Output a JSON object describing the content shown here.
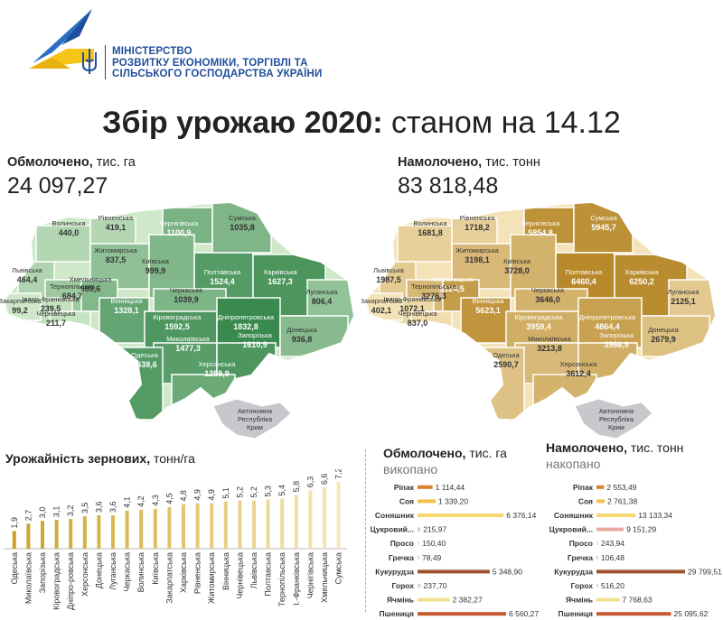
{
  "header": {
    "ministry_lines": [
      "МІНІСТЕРСТВО",
      "РОЗВИТКУ ЕКОНОМІКИ, ТОРГІВЛІ ТА",
      "СІЛЬСЬКОГО ГОСПОДАРСТВА УКРАЇНИ"
    ],
    "logo_icon": "ministry-logo-icon",
    "emblem_icon": "trident-emblem-icon"
  },
  "title": {
    "bold": "Збір урожаю 2020:",
    "rest": "станом на 14.12"
  },
  "threshed": {
    "label_bold": "Обмолочено,",
    "label_unit": "тис. га",
    "value": "24 097,27"
  },
  "harvested": {
    "label_bold": "Намолочено,",
    "label_unit": "тис. тонн",
    "value": "83 818,48"
  },
  "colors": {
    "green_dark": "#3a8a4f",
    "green_light": "#cfe8c9",
    "gold_dark": "#b8892b",
    "gold_light": "#f4e3b8",
    "crimea": "#c8c8cc"
  },
  "maps": {
    "crimea_label": [
      "Автономна",
      "Республіка",
      "Крим"
    ],
    "regions": [
      {
        "name": "Волинська",
        "area": "440,0",
        "yield": "1681,8"
      },
      {
        "name": "Рівненська",
        "area": "419,1",
        "yield": "1718,2"
      },
      {
        "name": "Чернігівська",
        "area": "1100,9",
        "yield": "5854,8"
      },
      {
        "name": "Сумська",
        "area": "1035,8",
        "yield": "5945,7"
      },
      {
        "name": "Житомирська",
        "area": "837,5",
        "yield": "3198,1"
      },
      {
        "name": "Київська",
        "area": "999,9",
        "yield": "3728,0"
      },
      {
        "name": "Львівська",
        "area": "464,4",
        "yield": "1987,5"
      },
      {
        "name": "Хмельницька",
        "area": "989,6",
        "yield": "5124,5"
      },
      {
        "name": "Тернопільська",
        "area": "684,7",
        "yield": "3276,3"
      },
      {
        "name": "Полтавська",
        "area": "1524,4",
        "yield": "6460,4"
      },
      {
        "name": "Харківська",
        "area": "1627,3",
        "yield": "6250,2"
      },
      {
        "name": "Луганська",
        "area": "806,4",
        "yield": "2125,1"
      },
      {
        "name": "Черкаська",
        "area": "1039,9",
        "yield": "3646,0"
      },
      {
        "name": "Івано-Франківська",
        "area": "239,5",
        "yield": "1072,1"
      },
      {
        "name": "Вінницька",
        "area": "1328,1",
        "yield": "5623,1"
      },
      {
        "name": "Закарпатська",
        "area": "99,2",
        "yield": "402,1"
      },
      {
        "name": "Чернівецька",
        "area": "211,7",
        "yield": "837,0"
      },
      {
        "name": "Кіровоградська",
        "area": "1592,5",
        "yield": "3959,4"
      },
      {
        "name": "Дніпропетровська",
        "area": "1832,8",
        "yield": "4864,4"
      },
      {
        "name": "Донецька",
        "area": "936,8",
        "yield": "2679,9"
      },
      {
        "name": "Миколаївська",
        "area": "1477,3",
        "yield": "3213,8"
      },
      {
        "name": "Запорізька",
        "area": "1610,9",
        "yield": "3966,9"
      },
      {
        "name": "Одеська",
        "area": "1538,6",
        "yield": "2590,7"
      },
      {
        "name": "Херсонська",
        "area": "1259,9",
        "yield": "3612,4"
      }
    ]
  },
  "yield_section": {
    "title_bold": "Урожайність зернових,",
    "title_unit": "тонн/га"
  },
  "threshed_section": {
    "title_bold": "Обмолочено,",
    "title_unit": "тис. га",
    "subtitle": "викопано"
  },
  "harvested_section": {
    "title_bold": "Намолочено,",
    "title_unit": "тис. тонн",
    "subtitle": "накопано"
  },
  "chart_data": [
    {
      "type": "bar",
      "title": "Урожайність зернових, тонн/га",
      "categories": [
        "Одеська",
        "Миколаївська",
        "Запорізька",
        "Кіровоградська",
        "Дніпро-ровська",
        "Херсонська",
        "Донецька",
        "Луганська",
        "Черкаська",
        "Волинська",
        "Київська",
        "Закарпатська",
        "Харківська",
        "Рівненська",
        "Житомирська",
        "Вінницька",
        "Чернівецька",
        "Львівська",
        "Полтавська",
        "Тернопільська",
        "І.-Франківська",
        "Чернігівська",
        "Хмельницька",
        "Сумська"
      ],
      "value_labels": [
        "1,9",
        "2,7",
        "3,0",
        "3,1",
        "3,2",
        "3,5",
        "3,6",
        "3,6",
        "4,1",
        "4,2",
        "4,3",
        "4,5",
        "4,8",
        "4,9",
        "4,9",
        "5,1",
        "5,2",
        "5,2",
        "5,3",
        "5,4",
        "5,8",
        "6,3",
        "6,6",
        "7,2"
      ],
      "values": [
        1.9,
        2.7,
        3.0,
        3.1,
        3.2,
        3.5,
        3.6,
        3.6,
        4.1,
        4.2,
        4.3,
        4.5,
        4.8,
        4.9,
        4.9,
        5.1,
        5.2,
        5.2,
        5.3,
        5.4,
        5.8,
        6.3,
        6.6,
        7.2
      ],
      "ylim": [
        0,
        7.2
      ]
    },
    {
      "type": "bar",
      "title": "Обмолочено, тис. га",
      "categories": [
        "Ріпак",
        "Соя",
        "Соняшник",
        "Цукровий...",
        "Просо",
        "Гречка",
        "Кукурудза",
        "Горох",
        "Ячмінь",
        "Пшениця"
      ],
      "value_labels": [
        "1 114,44",
        "1 339,20",
        "6 376,14",
        "215,97",
        "150,40",
        "78,49",
        "5 348,90",
        "237,70",
        "2 382,27",
        "6 560,27"
      ],
      "values": [
        1114.44,
        1339.2,
        6376.14,
        215.97,
        150.4,
        78.49,
        5348.9,
        237.7,
        2382.27,
        6560.27
      ],
      "colors": [
        "#d9822b",
        "#f2c14e",
        "#f5d76e",
        "#d0d0d0",
        "#e8e8e8",
        "#d8d8d8",
        "#a0522d",
        "#d6d6d6",
        "#f0e090",
        "#c85a32"
      ]
    },
    {
      "type": "bar",
      "title": "Намолочено, тис. тонн",
      "categories": [
        "Ріпак",
        "Соя",
        "Соняшник",
        "Цукровий...",
        "Просо",
        "Гречка",
        "Кукурудза",
        "Горох",
        "Ячмінь",
        "Пшениця"
      ],
      "value_labels": [
        "2 553,49",
        "2 761,38",
        "13 133,34",
        "9 151,29",
        "243,94",
        "106,48",
        "29 799,51",
        "516,20",
        "7 768,63",
        "25 095,62"
      ],
      "values": [
        2553.49,
        2761.38,
        13133.34,
        9151.29,
        243.94,
        106.48,
        29799.51,
        516.2,
        7768.63,
        25095.62
      ],
      "colors": [
        "#d9822b",
        "#f2c14e",
        "#f5d76e",
        "#e8a9a0",
        "#e8e8e8",
        "#d8d8d8",
        "#a0522d",
        "#d6d6d6",
        "#f0e090",
        "#c85a32"
      ]
    }
  ]
}
